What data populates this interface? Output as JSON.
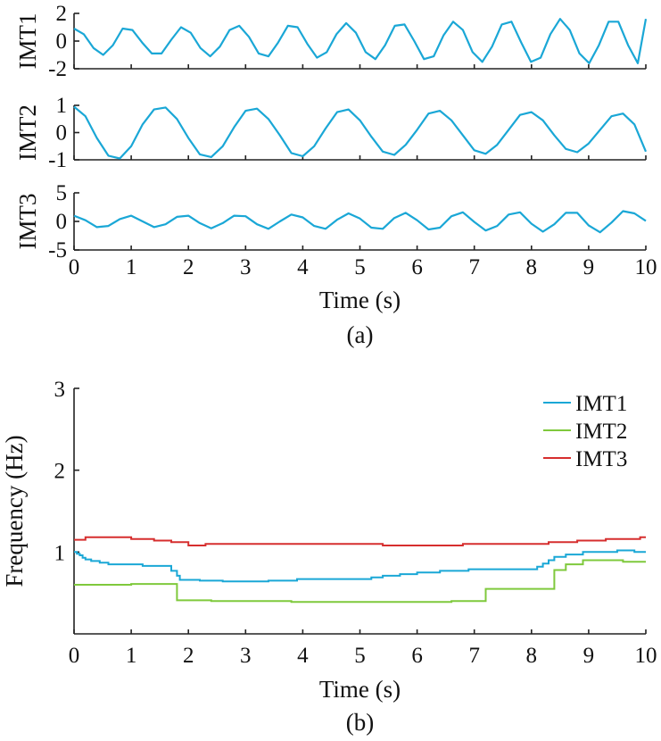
{
  "chart_data": [
    {
      "type": "line",
      "panel": "a",
      "caption": "(a)",
      "xlabel": "Time (s)",
      "xlim": [
        0,
        10
      ],
      "x_ticks": [
        0,
        1,
        2,
        3,
        4,
        5,
        6,
        7,
        8,
        9,
        10
      ],
      "subplots": [
        {
          "ylabel": "IMT1",
          "ylim": [
            -2,
            2
          ],
          "y_ticks": [
            2,
            0,
            -2
          ],
          "series": [
            {
              "color": "#1aa7d6",
              "x": [
                0,
                0.17,
                0.34,
                0.51,
                0.68,
                0.85,
                1.02,
                1.19,
                1.36,
                1.53,
                1.7,
                1.87,
                2.04,
                2.21,
                2.38,
                2.55,
                2.72,
                2.89,
                3.06,
                3.23,
                3.4,
                3.57,
                3.74,
                3.91,
                4.08,
                4.25,
                4.42,
                4.59,
                4.76,
                4.93,
                5.1,
                5.27,
                5.44,
                5.61,
                5.78,
                5.95,
                6.12,
                6.29,
                6.46,
                6.63,
                6.8,
                6.97,
                7.14,
                7.31,
                7.48,
                7.65,
                7.82,
                7.99,
                8.16,
                8.33,
                8.5,
                8.67,
                8.84,
                9.01,
                9.18,
                9.35,
                9.52,
                9.69,
                9.86,
                10
              ],
              "y": [
                0.9,
                0.5,
                -0.5,
                -1.0,
                -0.3,
                0.9,
                0.8,
                -0.1,
                -0.9,
                -0.9,
                0.1,
                1.0,
                0.6,
                -0.5,
                -1.1,
                -0.4,
                0.8,
                1.1,
                0.3,
                -0.9,
                -1.1,
                -0.1,
                1.1,
                1.0,
                -0.2,
                -1.2,
                -0.8,
                0.5,
                1.3,
                0.6,
                -0.8,
                -1.3,
                -0.3,
                1.1,
                1.2,
                0.0,
                -1.3,
                -1.1,
                0.4,
                1.4,
                0.8,
                -0.8,
                -1.5,
                -0.4,
                1.2,
                1.4,
                -0.1,
                -1.5,
                -1.2,
                0.5,
                1.6,
                0.8,
                -0.9,
                -1.6,
                -0.3,
                1.4,
                1.4,
                -0.3,
                -1.6,
                1.6
              ]
            }
          ]
        },
        {
          "ylabel": "IMT2",
          "ylim": [
            -1,
            1
          ],
          "y_ticks": [
            1,
            0,
            -1
          ],
          "series": [
            {
              "color": "#1aa7d6",
              "x": [
                0,
                0.2,
                0.4,
                0.6,
                0.8,
                1.0,
                1.2,
                1.4,
                1.6,
                1.8,
                2.0,
                2.2,
                2.4,
                2.6,
                2.8,
                3.0,
                3.2,
                3.4,
                3.6,
                3.8,
                4.0,
                4.2,
                4.4,
                4.6,
                4.8,
                5.0,
                5.2,
                5.4,
                5.6,
                5.8,
                6.0,
                6.2,
                6.4,
                6.6,
                6.8,
                7.0,
                7.2,
                7.4,
                7.6,
                7.8,
                8.0,
                8.2,
                8.4,
                8.6,
                8.8,
                9.0,
                9.2,
                9.4,
                9.6,
                9.8,
                10.0
              ],
              "y": [
                0.95,
                0.6,
                -0.2,
                -0.85,
                -0.95,
                -0.5,
                0.3,
                0.85,
                0.92,
                0.5,
                -0.2,
                -0.8,
                -0.9,
                -0.5,
                0.2,
                0.8,
                0.88,
                0.5,
                -0.1,
                -0.75,
                -0.87,
                -0.5,
                0.15,
                0.75,
                0.85,
                0.45,
                -0.15,
                -0.7,
                -0.82,
                -0.45,
                0.1,
                0.7,
                0.8,
                0.45,
                -0.1,
                -0.65,
                -0.78,
                -0.45,
                0.1,
                0.65,
                0.75,
                0.45,
                -0.1,
                -0.6,
                -0.72,
                -0.4,
                0.1,
                0.6,
                0.7,
                0.3,
                -0.7
              ]
            }
          ]
        },
        {
          "ylabel": "IMT3",
          "ylim": [
            -5,
            5
          ],
          "y_ticks": [
            5,
            0,
            -5
          ],
          "series": [
            {
              "color": "#1aa7d6",
              "x": [
                0,
                0.2,
                0.4,
                0.6,
                0.8,
                1.0,
                1.2,
                1.4,
                1.6,
                1.8,
                2.0,
                2.2,
                2.4,
                2.6,
                2.8,
                3.0,
                3.2,
                3.4,
                3.6,
                3.8,
                4.0,
                4.2,
                4.4,
                4.6,
                4.8,
                5.0,
                5.2,
                5.4,
                5.6,
                5.8,
                6.0,
                6.2,
                6.4,
                6.6,
                6.8,
                7.0,
                7.2,
                7.4,
                7.6,
                7.8,
                8.0,
                8.2,
                8.4,
                8.6,
                8.8,
                9.0,
                9.2,
                9.4,
                9.6,
                9.8,
                10.0
              ],
              "y": [
                1.0,
                0.2,
                -1.0,
                -0.8,
                0.4,
                1.0,
                0.0,
                -1.0,
                -0.5,
                0.8,
                1.0,
                -0.3,
                -1.2,
                -0.3,
                1.0,
                0.9,
                -0.5,
                -1.3,
                0.0,
                1.2,
                0.7,
                -0.8,
                -1.3,
                0.3,
                1.4,
                0.5,
                -1.1,
                -1.3,
                0.6,
                1.5,
                0.2,
                -1.4,
                -1.1,
                0.9,
                1.6,
                -0.1,
                -1.6,
                -0.8,
                1.2,
                1.6,
                -0.4,
                -1.8,
                -0.5,
                1.5,
                1.5,
                -0.7,
                -1.9,
                -0.2,
                1.8,
                1.4,
                0.1
              ]
            }
          ]
        }
      ]
    },
    {
      "type": "line",
      "panel": "b",
      "caption": "(b)",
      "xlabel": "Time (s)",
      "ylabel": "Frequency (Hz)",
      "xlim": [
        0,
        10
      ],
      "ylim": [
        0,
        3
      ],
      "x_ticks": [
        0,
        1,
        2,
        3,
        4,
        5,
        6,
        7,
        8,
        9,
        10
      ],
      "y_ticks": [
        3,
        2,
        1
      ],
      "legend_position": "top-right",
      "series": [
        {
          "name": "IMT1",
          "color": "#1aa7d6",
          "step": true,
          "x": [
            0,
            0.05,
            0.1,
            0.15,
            0.2,
            0.3,
            0.45,
            0.6,
            1.0,
            1.2,
            1.5,
            1.7,
            1.8,
            1.85,
            2.2,
            2.6,
            2.95,
            3.4,
            3.9,
            4.5,
            5.0,
            5.2,
            5.4,
            5.7,
            6.0,
            6.4,
            6.9,
            7.5,
            8.0,
            8.1,
            8.2,
            8.3,
            8.4,
            8.6,
            8.9,
            9.5,
            9.8,
            10.0
          ],
          "y": [
            1.0,
            0.98,
            0.96,
            0.93,
            0.91,
            0.89,
            0.87,
            0.85,
            0.85,
            0.83,
            0.83,
            0.77,
            0.71,
            0.66,
            0.65,
            0.64,
            0.64,
            0.65,
            0.67,
            0.67,
            0.67,
            0.69,
            0.71,
            0.73,
            0.75,
            0.77,
            0.79,
            0.79,
            0.79,
            0.82,
            0.86,
            0.9,
            0.94,
            0.97,
            1.0,
            1.02,
            1.0,
            1.0
          ]
        },
        {
          "name": "IMT2",
          "color": "#7fc93c",
          "step": true,
          "x": [
            0,
            1.0,
            1.6,
            1.8,
            2.4,
            3.8,
            6.6,
            7.2,
            7.3,
            8.3,
            8.4,
            8.6,
            8.9,
            9.6,
            10.0
          ],
          "y": [
            0.6,
            0.61,
            0.61,
            0.41,
            0.4,
            0.39,
            0.4,
            0.55,
            0.55,
            0.55,
            0.78,
            0.85,
            0.9,
            0.88,
            0.88
          ]
        },
        {
          "name": "IMT3",
          "color": "#d62e2e",
          "step": true,
          "x": [
            0,
            0.2,
            1.0,
            1.4,
            1.7,
            2.0,
            2.3,
            3.0,
            4.0,
            5.0,
            5.4,
            6.0,
            6.8,
            7.3,
            8.3,
            8.8,
            9.3,
            9.9,
            10.0
          ],
          "y": [
            1.15,
            1.18,
            1.16,
            1.14,
            1.12,
            1.08,
            1.1,
            1.1,
            1.1,
            1.1,
            1.08,
            1.08,
            1.1,
            1.1,
            1.12,
            1.14,
            1.16,
            1.18,
            1.18
          ]
        }
      ]
    }
  ]
}
